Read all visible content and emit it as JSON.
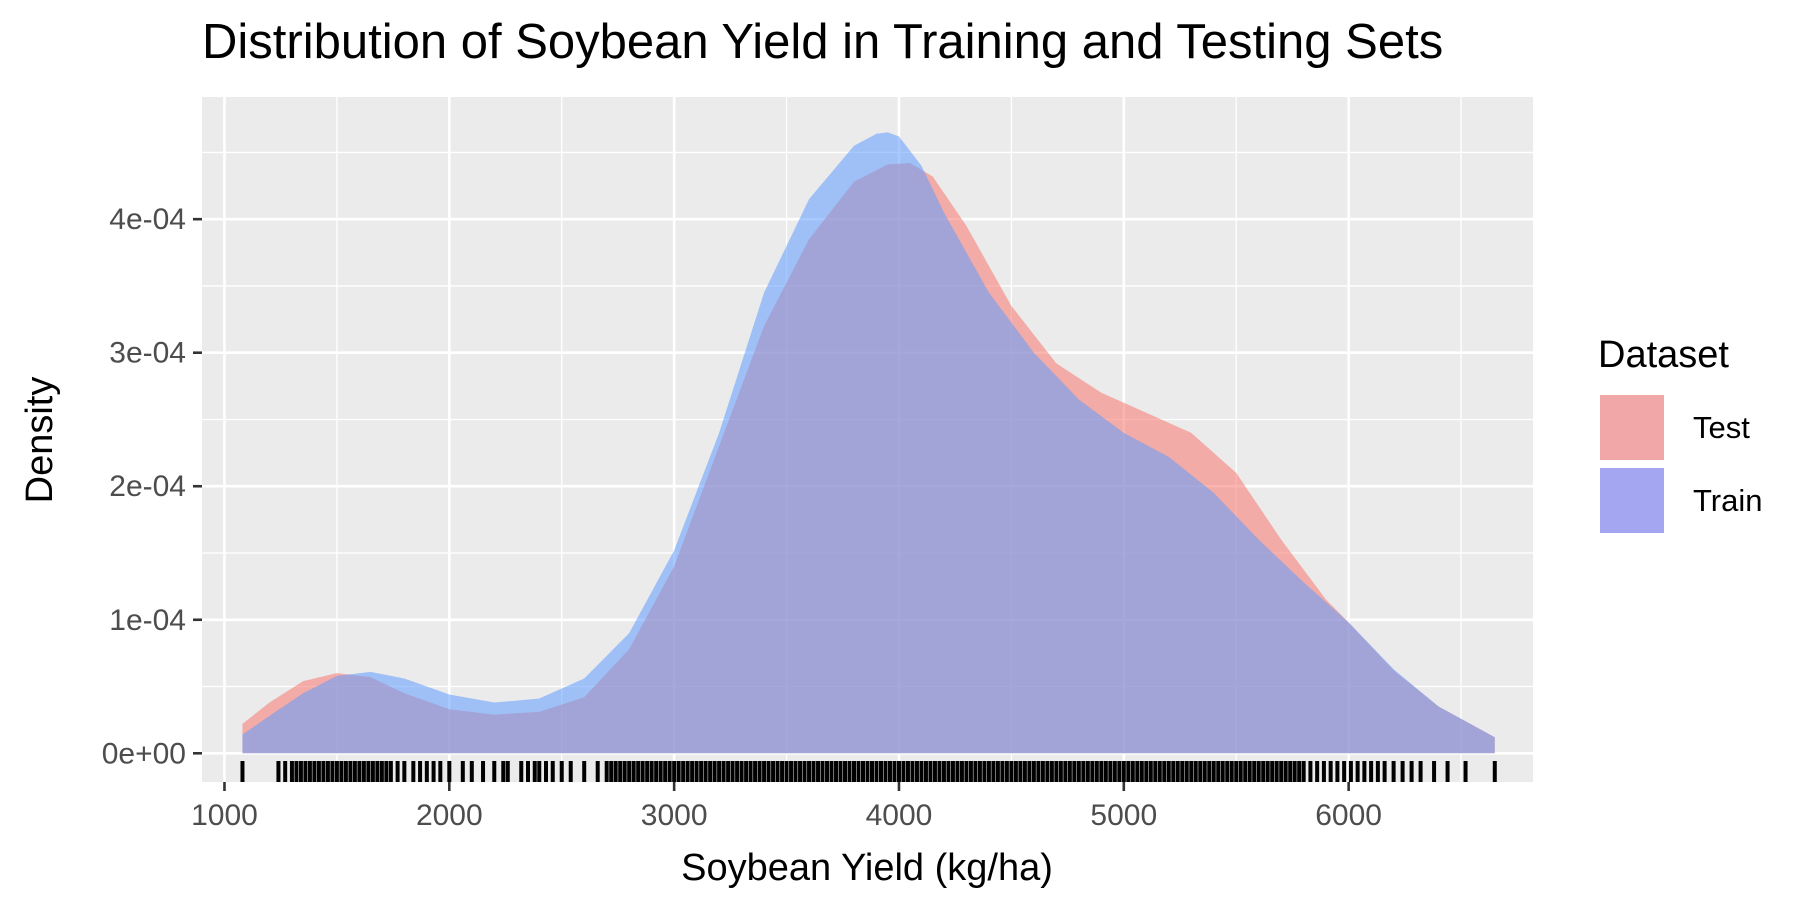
{
  "chart_data": {
    "type": "area",
    "title": "Distribution of Soybean Yield in Training and Testing Sets",
    "xlabel": "Soybean Yield (kg/ha)",
    "ylabel": "Density",
    "xlim": [
      900,
      6820
    ],
    "ylim": [
      -2.15e-05,
      0.0004915
    ],
    "x_ticks": [
      1000,
      2000,
      3000,
      4000,
      5000,
      6000
    ],
    "x_tick_labels": [
      "1000",
      "2000",
      "3000",
      "4000",
      "5000",
      "6000"
    ],
    "y_ticks": [
      0,
      0.0001,
      0.0002,
      0.0003,
      0.0004
    ],
    "y_tick_labels": [
      "0e+00",
      "1e-04",
      "2e-04",
      "3e-04",
      "4e-04"
    ],
    "grid": true,
    "legend": {
      "title": "Dataset",
      "position": "right"
    },
    "series": [
      {
        "name": "Test",
        "color": "#F8766D",
        "x": [
          1080,
          1200,
          1350,
          1500,
          1650,
          1800,
          2000,
          2200,
          2400,
          2600,
          2800,
          3000,
          3200,
          3400,
          3600,
          3800,
          3950,
          4050,
          4150,
          4300,
          4500,
          4700,
          4900,
          5100,
          5300,
          5500,
          5700,
          5900,
          6000,
          6200,
          6400,
          6650
        ],
        "values": [
          2.2e-05,
          3.8e-05,
          5.4e-05,
          6e-05,
          5.7e-05,
          4.5e-05,
          3.3e-05,
          2.9e-05,
          3.1e-05,
          4.2e-05,
          7.8e-05,
          0.00014,
          0.00023,
          0.00032,
          0.000385,
          0.000428,
          0.000441,
          0.000442,
          0.000432,
          0.000395,
          0.000335,
          0.000292,
          0.00027,
          0.000255,
          0.00024,
          0.00021,
          0.00016,
          0.000115,
          9.8e-05,
          6.2e-05,
          3.5e-05,
          1.2e-05
        ]
      },
      {
        "name": "Train",
        "color": "#619CFF",
        "x": [
          1080,
          1200,
          1350,
          1500,
          1650,
          1800,
          2000,
          2200,
          2400,
          2600,
          2800,
          3000,
          3200,
          3400,
          3600,
          3800,
          3900,
          3950,
          4000,
          4100,
          4200,
          4400,
          4600,
          4800,
          5000,
          5200,
          5400,
          5600,
          5800,
          6000,
          6200,
          6400,
          6650
        ],
        "values": [
          1.4e-05,
          2.8e-05,
          4.5e-05,
          5.8e-05,
          6.1e-05,
          5.6e-05,
          4.4e-05,
          3.8e-05,
          4.1e-05,
          5.6e-05,
          9e-05,
          0.000152,
          0.00024,
          0.000345,
          0.000415,
          0.000455,
          0.000464,
          0.000465,
          0.000462,
          0.00044,
          0.000405,
          0.000345,
          0.0003,
          0.000265,
          0.00024,
          0.000222,
          0.000195,
          0.00016,
          0.000128,
          9.8e-05,
          6.3e-05,
          3.5e-05,
          1.2e-05
        ]
      }
    ],
    "rug_x": [
      1080,
      1240,
      1270,
      1300,
      1320,
      1340,
      1360,
      1380,
      1400,
      1420,
      1440,
      1460,
      1480,
      1500,
      1520,
      1540,
      1560,
      1580,
      1600,
      1620,
      1640,
      1660,
      1680,
      1700,
      1720,
      1740,
      1770,
      1800,
      1840,
      1870,
      1900,
      1930,
      1960,
      2000,
      2060,
      2100,
      2150,
      2200,
      2240,
      2260,
      2320,
      2350,
      2380,
      2400,
      2430,
      2460,
      2500,
      2540,
      2600,
      2660,
      2700,
      2720,
      2740,
      2760,
      2780,
      2800,
      2820,
      2840,
      2860,
      2880,
      2900,
      2920,
      2940,
      2960,
      2980,
      3000,
      3020,
      3040,
      3060,
      3080,
      3100,
      3120,
      3140,
      3160,
      3180,
      3200,
      3220,
      3240,
      3260,
      3280,
      3300,
      3320,
      3340,
      3360,
      3380,
      3400,
      3420,
      3440,
      3460,
      3480,
      3500,
      3520,
      3540,
      3560,
      3580,
      3600,
      3620,
      3640,
      3660,
      3680,
      3700,
      3720,
      3740,
      3760,
      3780,
      3800,
      3820,
      3840,
      3860,
      3880,
      3900,
      3920,
      3940,
      3960,
      3980,
      4000,
      4020,
      4040,
      4060,
      4080,
      4100,
      4120,
      4140,
      4160,
      4180,
      4200,
      4220,
      4240,
      4260,
      4280,
      4300,
      4320,
      4340,
      4360,
      4380,
      4400,
      4420,
      4440,
      4460,
      4480,
      4500,
      4520,
      4540,
      4560,
      4580,
      4600,
      4620,
      4640,
      4660,
      4680,
      4700,
      4720,
      4740,
      4760,
      4780,
      4800,
      4820,
      4840,
      4860,
      4880,
      4900,
      4920,
      4940,
      4960,
      4980,
      5000,
      5020,
      5040,
      5060,
      5080,
      5100,
      5120,
      5140,
      5160,
      5180,
      5200,
      5220,
      5240,
      5260,
      5280,
      5300,
      5320,
      5340,
      5360,
      5380,
      5400,
      5420,
      5440,
      5460,
      5480,
      5500,
      5520,
      5540,
      5560,
      5580,
      5600,
      5620,
      5640,
      5660,
      5680,
      5700,
      5720,
      5740,
      5760,
      5780,
      5800,
      5830,
      5860,
      5890,
      5920,
      5950,
      5980,
      6010,
      6040,
      6070,
      6100,
      6130,
      6160,
      6200,
      6240,
      6280,
      6320,
      6380,
      6440,
      6520,
      6650
    ]
  }
}
